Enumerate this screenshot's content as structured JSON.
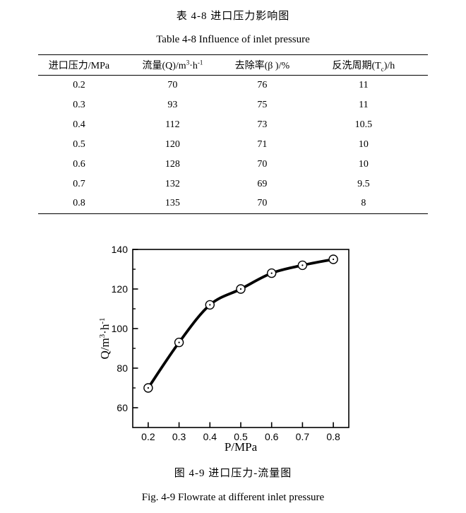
{
  "page": {
    "table_title_cn": "表 4-8 进口压力影响图",
    "table_title_en": "Table 4-8 Influence of inlet pressure",
    "figure_caption_cn": "图 4-9 进口压力-流量图",
    "figure_caption_en": "Fig. 4-9 Flowrate at different inlet pressure"
  },
  "table": {
    "headers": [
      {
        "segs": [
          {
            "t": "进口压力/MPa"
          }
        ]
      },
      {
        "segs": [
          {
            "t": "流量(Q)/m"
          },
          {
            "t": "3",
            "v": "sup"
          },
          {
            "t": "·h"
          },
          {
            "t": "-1",
            "v": "sup"
          }
        ]
      },
      {
        "segs": [
          {
            "t": "去除率(β )/%"
          }
        ]
      },
      {
        "segs": [
          {
            "t": "反洗周期(T"
          },
          {
            "t": "c",
            "v": "sub"
          },
          {
            "t": ")/h"
          }
        ]
      }
    ],
    "col_widths_percent": [
      21,
      27,
      19,
      33
    ],
    "rows": [
      [
        "0.2",
        "70",
        "76",
        "11"
      ],
      [
        "0.3",
        "93",
        "75",
        "11"
      ],
      [
        "0.4",
        "112",
        "73",
        "10.5"
      ],
      [
        "0.5",
        "120",
        "71",
        "10"
      ],
      [
        "0.6",
        "128",
        "70",
        "10"
      ],
      [
        "0.7",
        "132",
        "69",
        "9.5"
      ],
      [
        "0.8",
        "135",
        "70",
        "8"
      ]
    ]
  },
  "chart_data": {
    "type": "line",
    "x": [
      0.2,
      0.3,
      0.4,
      0.5,
      0.6,
      0.7,
      0.8
    ],
    "series": [
      {
        "name": "Q",
        "values": [
          70,
          93,
          112,
          120,
          128,
          132,
          135
        ]
      }
    ],
    "xlabel": "P/MPa",
    "ylabel": "Q/m3·h-1",
    "ylabel_segs": [
      {
        "t": "Q/m"
      },
      {
        "t": "3",
        "v": "sup"
      },
      {
        "t": "·h"
      },
      {
        "t": "-1",
        "v": "sup"
      }
    ],
    "xlim": [
      0.15,
      0.85
    ],
    "ylim": [
      50,
      140
    ],
    "x_major_ticks": [
      0.2,
      0.3,
      0.4,
      0.5,
      0.6,
      0.7,
      0.8
    ],
    "y_major_ticks": [
      60,
      80,
      100,
      120,
      140
    ],
    "y_minor_step": 10,
    "grid": false,
    "legend": "none",
    "line_color": "#000000",
    "marker": "open-circle-center-dot",
    "marker_fill": "#ffffff"
  }
}
